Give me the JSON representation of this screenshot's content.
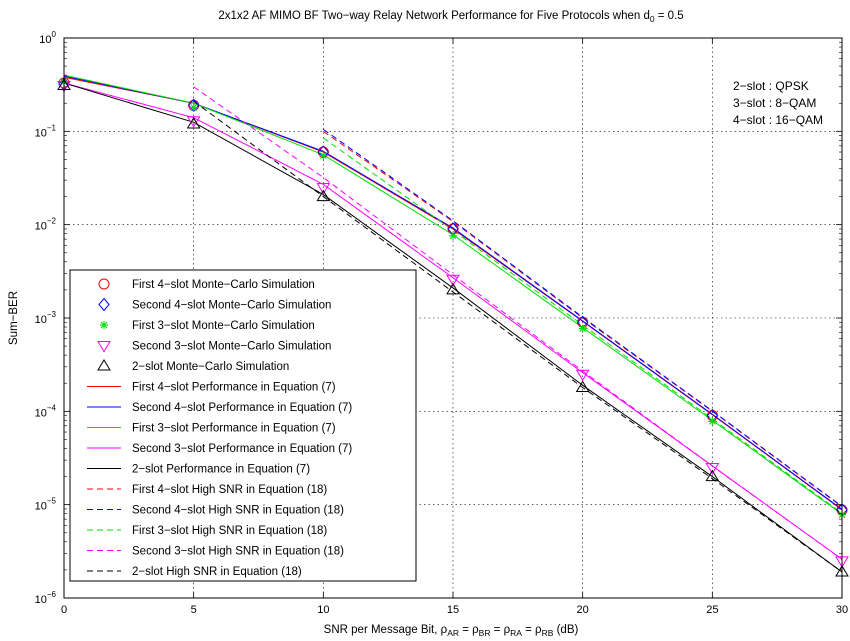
{
  "chart_data": {
    "type": "line",
    "title": "2x1x2 AF MIMO BF Two−way Relay Network Performance for Five Protocols when d",
    "title_sub": "0",
    "title_tail": " = 0.5",
    "xlabel_parts": [
      {
        "t": "SNR per Message Bit, ρ"
      },
      {
        "t": "AR",
        "sub": true
      },
      {
        "t": " = ρ"
      },
      {
        "t": "BR",
        "sub": true
      },
      {
        "t": " = ρ"
      },
      {
        "t": "RA",
        "sub": true
      },
      {
        "t": " = ρ"
      },
      {
        "t": "RB",
        "sub": true
      },
      {
        "t": " (dB)"
      }
    ],
    "ylabel": "Sum−BER",
    "xlim": [
      0,
      30
    ],
    "ylim": [
      1e-06,
      1
    ],
    "yscale": "log",
    "grid": true,
    "legend_position": "bottom-left",
    "xticks": [
      0,
      5,
      10,
      15,
      20,
      25,
      30
    ],
    "xtick_labels": [
      "0",
      "5",
      "10",
      "15",
      "20",
      "25",
      "30"
    ],
    "yticks": [
      {
        "value": 1,
        "base": "10",
        "exp": "0"
      },
      {
        "value": 0.1,
        "base": "10",
        "exp": "−1"
      },
      {
        "value": 0.01,
        "base": "10",
        "exp": "−2"
      },
      {
        "value": 0.001,
        "base": "10",
        "exp": "−3"
      },
      {
        "value": 0.0001,
        "base": "10",
        "exp": "−4"
      },
      {
        "value": 1e-05,
        "base": "10",
        "exp": "−5"
      },
      {
        "value": 1e-06,
        "base": "10",
        "exp": "−6"
      }
    ],
    "annotations": [
      "2−slot : QPSK",
      "3−slot : 8−QAM",
      "4−slot : 16−QAM"
    ],
    "x": [
      0,
      5,
      10,
      15,
      20,
      25,
      30
    ],
    "series": [
      {
        "name": "First 4−slot Monte−Carlo Simulation",
        "kind": "marker",
        "marker": "circle",
        "color": "#ff0000",
        "values": [
          0.33,
          0.19,
          0.06,
          0.009,
          0.0009,
          9e-05,
          8.8e-06
        ]
      },
      {
        "name": "Second 4−slot Monte−Carlo Simulation",
        "kind": "marker",
        "marker": "diamond",
        "color": "#0000ff",
        "values": [
          0.32,
          0.19,
          0.06,
          0.009,
          0.0009,
          9e-05,
          8.8e-06
        ]
      },
      {
        "name": "First 3−slot Monte−Carlo Simulation",
        "kind": "marker",
        "marker": "star",
        "color": "#00dd00",
        "values": [
          0.34,
          0.18,
          0.055,
          0.0076,
          0.00077,
          7.8e-05,
          7.8e-06
        ]
      },
      {
        "name": "Second 3−slot Monte−Carlo Simulation",
        "kind": "marker",
        "marker": "triangle-down",
        "color": "#ff00ff",
        "values": [
          0.31,
          0.13,
          0.025,
          0.0026,
          0.00025,
          2.5e-05,
          2.5e-06
        ]
      },
      {
        "name": "2−slot Monte−Carlo Simulation",
        "kind": "marker",
        "marker": "triangle-up",
        "color": "#000000",
        "values": [
          0.31,
          0.12,
          0.02,
          0.002,
          0.00018,
          2e-05,
          1.9e-06
        ]
      },
      {
        "name": "First 4−slot Performance in Equation (7)",
        "kind": "line",
        "dash": "solid",
        "color": "#ff0000",
        "values": [
          0.38,
          0.2,
          0.06,
          0.009,
          0.00092,
          9.2e-05,
          8.8e-06
        ]
      },
      {
        "name": "Second 4−slot Performance in Equation (7)",
        "kind": "line",
        "dash": "solid",
        "color": "#0000ff",
        "values": [
          0.39,
          0.2,
          0.061,
          0.0092,
          0.00093,
          9.3e-05,
          8.9e-06
        ]
      },
      {
        "name": "First 3−slot Performance in Equation (7)",
        "kind": "line",
        "dash": "solid",
        "color": "#00dd00",
        "values": [
          0.4,
          0.2,
          0.056,
          0.0078,
          0.00079,
          8e-05,
          7.9e-06
        ]
      },
      {
        "name": "Second 3−slot Performance in Equation (7)",
        "kind": "line",
        "dash": "solid",
        "color": "#ff00ff",
        "values": [
          0.33,
          0.14,
          0.027,
          0.0027,
          0.00026,
          2.6e-05,
          2.6e-06
        ]
      },
      {
        "name": "2−slot Performance in Equation (7)",
        "kind": "line",
        "dash": "solid",
        "color": "#000000",
        "values": [
          0.33,
          0.125,
          0.021,
          0.0021,
          0.00019,
          2e-05,
          1.9e-06
        ]
      },
      {
        "name": "First 4−slot High SNR in Equation (18)",
        "kind": "line",
        "dash": "dashed",
        "color": "#ff0000",
        "values": [
          null,
          null,
          0.1,
          0.0108,
          0.001,
          0.0001,
          9.5e-06
        ]
      },
      {
        "name": "Second 4−slot High SNR in Equation (18)",
        "kind": "line",
        "dash": "dashed",
        "color": "#0000ff",
        "values": [
          null,
          null,
          0.105,
          0.011,
          0.00102,
          0.000101,
          9.6e-06
        ]
      },
      {
        "name": "First 3−slot High SNR in Equation (18)",
        "kind": "line",
        "dash": "dashed",
        "color": "#00dd00",
        "values": [
          null,
          null,
          0.085,
          0.0087,
          0.00084,
          8.3e-05,
          8.1e-06
        ]
      },
      {
        "name": "Second 3−slot High SNR in Equation (18)",
        "kind": "line",
        "dash": "dashed",
        "color": "#ff00ff",
        "values": [
          null,
          0.3,
          0.032,
          0.0029,
          0.00027,
          2.6e-05,
          2.6e-06
        ]
      },
      {
        "name": "2−slot High SNR in Equation (18)",
        "kind": "line",
        "dash": "dashed",
        "color": "#000000",
        "values": [
          null,
          0.21,
          0.02,
          0.0019,
          0.00018,
          1.9e-05,
          1.9e-06
        ]
      }
    ]
  }
}
